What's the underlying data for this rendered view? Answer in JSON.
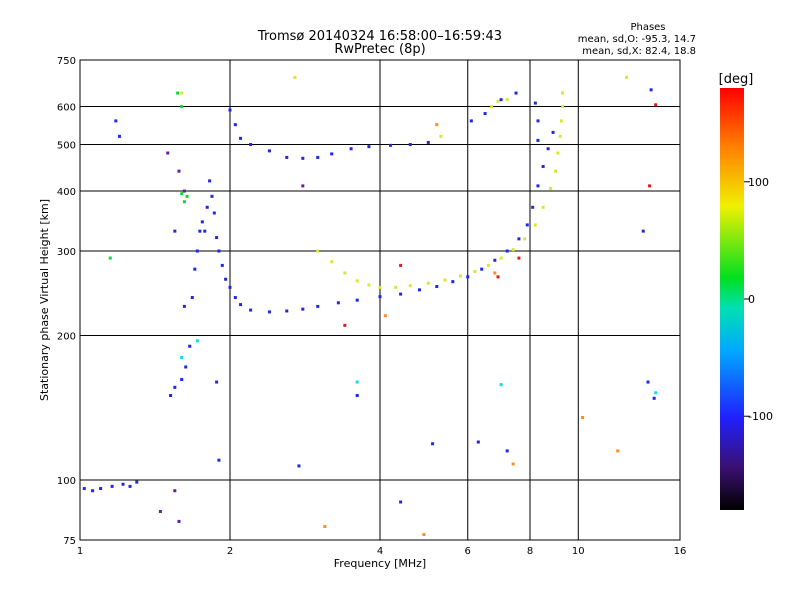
{
  "header": {
    "title": "Tromsø 20140324 16:58:00–16:59:43",
    "subtitle": "RwPretec (8p)"
  },
  "stats": {
    "heading": "Phases",
    "line_o": "mean, sd,O: -95.3, 14.7",
    "line_x": "mean, sd,X:  82.4, 18.8"
  },
  "colorbar": {
    "unit_label": "[deg]",
    "ticks": [
      100,
      0,
      -100
    ],
    "range": [
      -180,
      180
    ]
  },
  "chart_data": {
    "type": "scatter",
    "xlabel": "Frequency [MHz]",
    "ylabel": "Stationary phase Virtual Height [km]",
    "x_scale": "log",
    "y_scale": "log",
    "xlim": [
      1,
      16
    ],
    "ylim": [
      75,
      750
    ],
    "x_ticks": [
      1,
      2,
      4,
      6,
      8,
      10,
      16
    ],
    "y_ticks": [
      75,
      100,
      200,
      300,
      400,
      500,
      600,
      750
    ],
    "grid": true,
    "color_scale": "phase [deg], -180 to 180",
    "series": [
      {
        "color": "#1c28e6",
        "points": [
          [
            1.02,
            96
          ],
          [
            1.06,
            95
          ],
          [
            1.1,
            96
          ],
          [
            1.16,
            97
          ],
          [
            1.22,
            98
          ],
          [
            1.26,
            97
          ],
          [
            1.3,
            99
          ],
          [
            1.52,
            150
          ],
          [
            1.55,
            156
          ],
          [
            1.6,
            162
          ],
          [
            1.63,
            172
          ],
          [
            1.66,
            190
          ],
          [
            1.68,
            240
          ],
          [
            1.7,
            275
          ],
          [
            1.72,
            300
          ],
          [
            1.74,
            330
          ],
          [
            1.76,
            345
          ],
          [
            1.78,
            330
          ],
          [
            1.8,
            370
          ],
          [
            1.82,
            420
          ],
          [
            1.84,
            390
          ],
          [
            1.86,
            360
          ],
          [
            1.88,
            320
          ],
          [
            1.9,
            300
          ],
          [
            1.93,
            280
          ],
          [
            1.96,
            262
          ],
          [
            2.0,
            252
          ],
          [
            2.05,
            240
          ],
          [
            2.1,
            232
          ],
          [
            2.2,
            226
          ],
          [
            2.4,
            224
          ],
          [
            2.6,
            225
          ],
          [
            2.8,
            227
          ],
          [
            3.0,
            230
          ],
          [
            3.3,
            234
          ],
          [
            3.6,
            237
          ],
          [
            4.0,
            241
          ],
          [
            4.4,
            244
          ],
          [
            4.8,
            249
          ],
          [
            5.2,
            253
          ],
          [
            5.6,
            259
          ],
          [
            6.0,
            265
          ],
          [
            6.4,
            275
          ],
          [
            6.8,
            287
          ],
          [
            7.2,
            300
          ],
          [
            7.6,
            318
          ],
          [
            7.9,
            340
          ],
          [
            8.1,
            370
          ],
          [
            8.3,
            410
          ],
          [
            8.5,
            450
          ],
          [
            8.7,
            490
          ],
          [
            8.9,
            530
          ],
          [
            2.0,
            590
          ],
          [
            2.05,
            550
          ],
          [
            2.1,
            515
          ],
          [
            2.2,
            500
          ],
          [
            2.4,
            485
          ],
          [
            2.6,
            470
          ],
          [
            2.8,
            468
          ],
          [
            3.0,
            470
          ],
          [
            3.2,
            478
          ],
          [
            3.5,
            490
          ],
          [
            3.8,
            495
          ],
          [
            4.2,
            498
          ],
          [
            4.6,
            500
          ],
          [
            5.0,
            505
          ],
          [
            6.1,
            560
          ],
          [
            6.5,
            580
          ],
          [
            7.0,
            620
          ],
          [
            7.5,
            640
          ],
          [
            8.2,
            610
          ],
          [
            8.3,
            560
          ],
          [
            8.3,
            510
          ],
          [
            1.18,
            560
          ],
          [
            1.2,
            520
          ],
          [
            1.55,
            330
          ],
          [
            1.62,
            230
          ],
          [
            1.88,
            160
          ],
          [
            1.9,
            110
          ],
          [
            2.75,
            107
          ],
          [
            3.6,
            150
          ],
          [
            5.1,
            119
          ],
          [
            6.3,
            120
          ],
          [
            7.2,
            115
          ],
          [
            4.4,
            90
          ],
          [
            14.0,
            650
          ],
          [
            13.5,
            330
          ],
          [
            13.8,
            160
          ],
          [
            14.2,
            148
          ]
        ]
      },
      {
        "color": "#d8e830",
        "points": [
          [
            3.0,
            300
          ],
          [
            3.2,
            285
          ],
          [
            3.4,
            270
          ],
          [
            3.6,
            260
          ],
          [
            3.8,
            255
          ],
          [
            4.0,
            252
          ],
          [
            4.3,
            252
          ],
          [
            4.6,
            254
          ],
          [
            5.0,
            257
          ],
          [
            5.4,
            261
          ],
          [
            5.8,
            266
          ],
          [
            6.2,
            272
          ],
          [
            6.6,
            280
          ],
          [
            7.0,
            290
          ],
          [
            7.4,
            302
          ],
          [
            7.8,
            318
          ],
          [
            8.2,
            340
          ],
          [
            8.5,
            370
          ],
          [
            8.8,
            405
          ],
          [
            9.0,
            440
          ],
          [
            9.1,
            480
          ],
          [
            9.2,
            520
          ],
          [
            9.25,
            560
          ],
          [
            9.3,
            600
          ],
          [
            9.3,
            640
          ],
          [
            6.7,
            600
          ],
          [
            6.9,
            615
          ],
          [
            7.2,
            620
          ],
          [
            5.3,
            520
          ],
          [
            1.6,
            640
          ],
          [
            2.7,
            690
          ],
          [
            12.5,
            690
          ]
        ]
      },
      {
        "color": "#10d838",
        "points": [
          [
            1.57,
            640
          ],
          [
            1.6,
            600
          ],
          [
            1.15,
            290
          ],
          [
            1.62,
            380
          ],
          [
            1.64,
            390
          ],
          [
            1.6,
            395
          ]
        ]
      },
      {
        "color": "#ff8c1e",
        "points": [
          [
            5.2,
            550
          ],
          [
            4.9,
            77
          ],
          [
            3.1,
            80
          ],
          [
            10.2,
            135
          ],
          [
            12.0,
            115
          ],
          [
            7.4,
            108
          ],
          [
            4.1,
            220
          ],
          [
            6.8,
            270
          ]
        ]
      },
      {
        "color": "#e21a1a",
        "points": [
          [
            3.4,
            210
          ],
          [
            6.9,
            265
          ],
          [
            14.3,
            605
          ],
          [
            13.9,
            410
          ],
          [
            4.4,
            280
          ],
          [
            7.6,
            290
          ]
        ]
      },
      {
        "color": "#18d8e8",
        "points": [
          [
            3.6,
            160
          ],
          [
            7.0,
            158
          ],
          [
            1.6,
            180
          ],
          [
            14.3,
            152
          ],
          [
            1.72,
            195
          ]
        ]
      },
      {
        "color": "#6a1aa0",
        "points": [
          [
            1.5,
            480
          ],
          [
            1.58,
            440
          ],
          [
            1.62,
            400
          ],
          [
            1.55,
            95
          ],
          [
            1.45,
            86
          ],
          [
            1.58,
            82
          ],
          [
            2.8,
            410
          ]
        ]
      }
    ]
  }
}
